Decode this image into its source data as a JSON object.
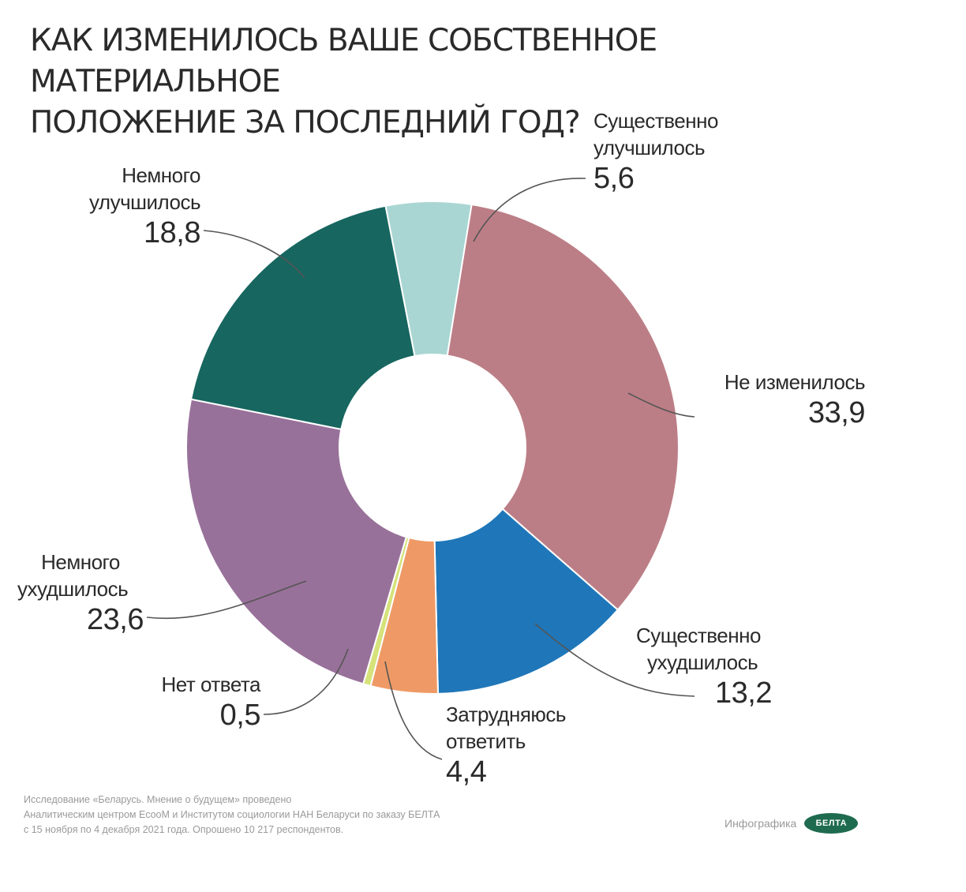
{
  "title": {
    "line1": "КАК ИЗМЕНИЛОСЬ ВАШЕ СОБСТВЕННОЕ МАТЕРИАЛЬНОЕ",
    "line2": "ПОЛОЖЕНИЕ ЗА ПОСЛЕДНИЙ ГОД?"
  },
  "chart_data": {
    "type": "pie",
    "title": "КАК ИЗМЕНИЛОСЬ ВАШЕ СОБСТВЕННОЕ МАТЕРИАЛЬНОЕ ПОЛОЖЕНИЕ ЗА ПОСЛЕДНИЙ ГОД?",
    "donut": true,
    "slices": [
      {
        "key": "sig-improved",
        "label_lines": [
          "Существенно",
          "улучшилось"
        ],
        "value": 5.6,
        "value_text": "5,6",
        "color": "#a9d6d3"
      },
      {
        "key": "unchanged",
        "label_lines": [
          "Не изменилось"
        ],
        "value": 33.9,
        "value_text": "33,9",
        "color": "#bc7e86"
      },
      {
        "key": "sig-worsened",
        "label_lines": [
          "Существенно",
          "ухудшилось"
        ],
        "value": 13.2,
        "value_text": "13,2",
        "color": "#1f77b9"
      },
      {
        "key": "hard-to-say",
        "label_lines": [
          "Затрудняюсь",
          "ответить"
        ],
        "value": 4.4,
        "value_text": "4,4",
        "color": "#ef9a66"
      },
      {
        "key": "no-answer",
        "label_lines": [
          "Нет ответа"
        ],
        "value": 0.5,
        "value_text": "0,5",
        "color": "#d6e27a"
      },
      {
        "key": "slightly-worsened",
        "label_lines": [
          "Немного",
          "ухудшилось"
        ],
        "value": 23.6,
        "value_text": "23,6",
        "color": "#98719a"
      },
      {
        "key": "slightly-improved",
        "label_lines": [
          "Немного",
          "улучшилось"
        ],
        "value": 18.8,
        "value_text": "18,8",
        "color": "#176660"
      }
    ]
  },
  "labels": {
    "sig_improved": {
      "line1": "Существенно",
      "line2": "улучшилось",
      "value": "5,6"
    },
    "unchanged": {
      "line1": "Не изменилось",
      "value": "33,9"
    },
    "sig_worsened": {
      "line1": "Существенно",
      "line2": "ухудшилось",
      "value": "13,2"
    },
    "hard_to_say": {
      "line1": "Затрудняюсь",
      "line2": "ответить",
      "value": "4,4"
    },
    "no_answer": {
      "line1": "Нет ответа",
      "value": "0,5"
    },
    "slightly_worsened": {
      "line1": "Немного",
      "line2": "ухудшилось",
      "value": "23,6"
    },
    "slightly_improved": {
      "line1": "Немного",
      "line2": "улучшилось",
      "value": "18,8"
    }
  },
  "footer": {
    "line1": "Исследование «Беларусь. Мнение о будущем» проведено",
    "line2": "Аналитическим центром EcooM и Институтом социологии НАН Беларуси по заказу БЕЛТА",
    "line3": "с 15 ноября по 4 декабря 2021 года. Опрошено 10 217 респондентов."
  },
  "brand": {
    "caption": "Инфографика",
    "logo_text": "БЕЛТА"
  }
}
